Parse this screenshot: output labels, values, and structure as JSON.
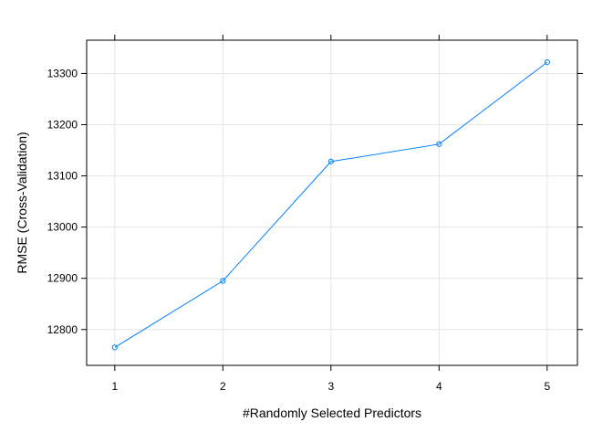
{
  "chart_data": {
    "type": "line",
    "title": "",
    "xlabel": "#Randomly Selected Predictors",
    "ylabel": "RMSE (Cross-Validation)",
    "x": [
      1,
      2,
      3,
      4,
      5
    ],
    "series": [
      {
        "values": [
          12765,
          12895,
          13128,
          13162,
          13322
        ],
        "color": "#0080ff",
        "marker": "open-circle"
      }
    ],
    "x_ticks": [
      1,
      2,
      3,
      4,
      5
    ],
    "y_ticks": [
      12800,
      12900,
      13000,
      13100,
      13200,
      13300
    ],
    "x_tick_labels": [
      "1",
      "2",
      "3",
      "4",
      "5"
    ],
    "y_tick_labels": [
      "12800",
      "12900",
      "13000",
      "13100",
      "13200",
      "13300"
    ],
    "xlim": [
      0.74,
      5.28
    ],
    "ylim": [
      12730,
      13365
    ],
    "grid": true,
    "grid_color": "#e6e6e6",
    "frame_color": "#000000",
    "line_color": "#0080ff"
  }
}
